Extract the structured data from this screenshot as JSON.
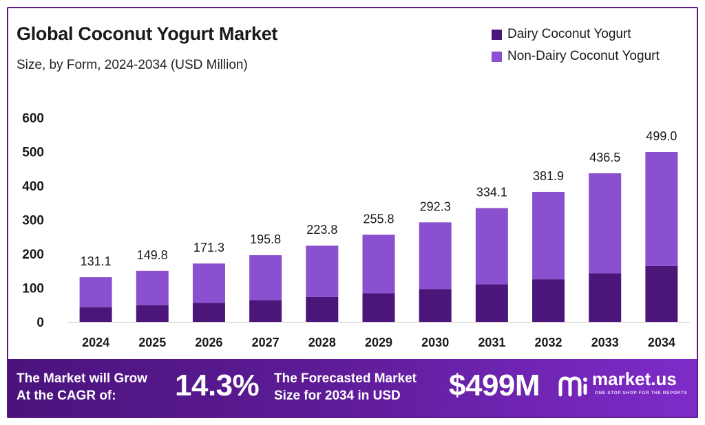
{
  "colors": {
    "dairy": "#4b157a",
    "non_dairy": "#8a50cf",
    "banner_start": "#4b137c",
    "banner_end": "#7e2cc9",
    "axis": "#c9c9c9"
  },
  "chart_data": {
    "type": "bar",
    "stacked": true,
    "title": "Global Coconut Yogurt Market",
    "subtitle": "Size, by Form, 2024-2034 (USD Million)",
    "categories": [
      "2024",
      "2025",
      "2026",
      "2027",
      "2028",
      "2029",
      "2030",
      "2031",
      "2032",
      "2033",
      "2034"
    ],
    "series": [
      {
        "name": "Dairy Coconut Yogurt",
        "values": [
          43,
          49,
          56,
          64,
          73,
          84,
          96,
          110,
          125,
          143,
          164
        ]
      },
      {
        "name": "Non-Dairy Coconut Yogurt",
        "values": [
          88.1,
          100.8,
          115.3,
          131.8,
          150.8,
          171.8,
          196.3,
          224.1,
          256.9,
          293.5,
          335.0
        ]
      }
    ],
    "totals": [
      "131.1",
      "149.8",
      "171.3",
      "195.8",
      "223.8",
      "255.8",
      "292.3",
      "334.1",
      "381.9",
      "436.5",
      "499.0"
    ],
    "ylim": [
      0,
      600
    ],
    "yticks": [
      0,
      100,
      200,
      300,
      400,
      500,
      600
    ],
    "grid": false,
    "legend_position": "top-right"
  },
  "banner": {
    "cagr_label_line1": "The Market will Grow",
    "cagr_label_line2": "At the CAGR of:",
    "cagr_value": "14.3%",
    "forecast_label_line1": "The Forecasted Market",
    "forecast_label_line2": "Size for 2034 in USD",
    "forecast_value": "$499M",
    "brand_name": "market.us",
    "brand_tagline": "ONE STOP SHOP FOR THE REPORTS",
    "brand_icon": "market-us-logo-icon"
  }
}
